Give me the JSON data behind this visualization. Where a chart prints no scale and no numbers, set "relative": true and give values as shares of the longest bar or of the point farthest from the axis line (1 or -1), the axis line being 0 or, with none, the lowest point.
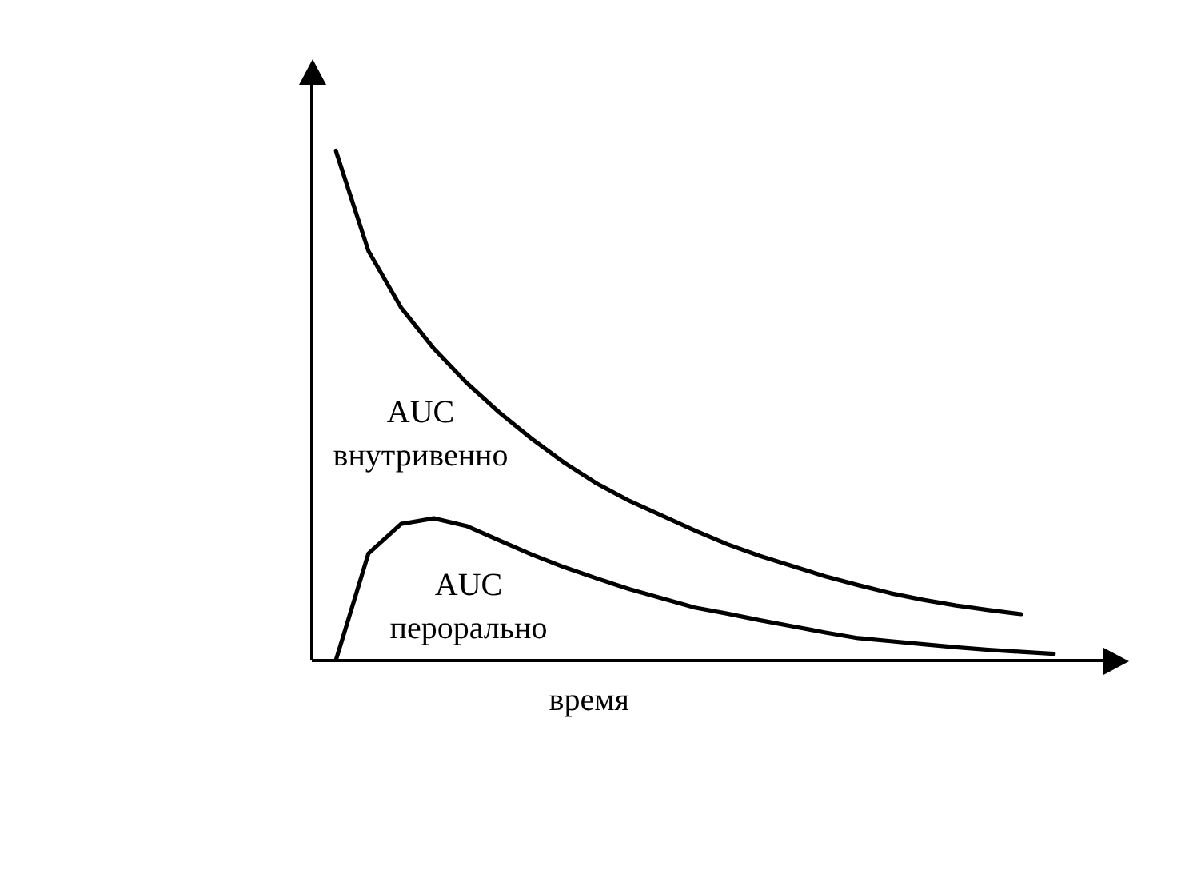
{
  "chart_data": {
    "type": "line",
    "relative": true,
    "xlabel": "время",
    "legend": false,
    "marker": "none",
    "line_style": "solid",
    "annotations": [
      "AUC внутривенно",
      "AUC перорально"
    ],
    "categories": [
      null,
      null,
      null,
      null,
      null,
      null,
      null,
      null,
      null,
      null,
      null,
      null,
      null,
      null,
      null,
      null,
      null,
      null,
      null,
      null,
      null,
      null,
      null
    ],
    "series": [
      {
        "color": "#000000",
        "values": [
          1,
          0.803,
          0.692,
          0.612,
          0.545,
          0.487,
          0.435,
          0.388,
          0.347,
          0.313,
          0.284,
          0.255,
          0.228,
          0.205,
          0.185,
          0.165,
          0.148,
          0.132,
          0.119,
          0.108,
          0.099,
          0.091,
          null
        ]
      },
      {
        "color": "#000000",
        "values": [
          0,
          0.21,
          0.268,
          0.279,
          0.264,
          0.236,
          0.208,
          0.183,
          0.161,
          0.14,
          0.122,
          0.104,
          0.092,
          0.079,
          0.067,
          0.055,
          0.044,
          0.038,
          0.032,
          0.026,
          0.021,
          0.017,
          0.013
        ]
      }
    ]
  }
}
